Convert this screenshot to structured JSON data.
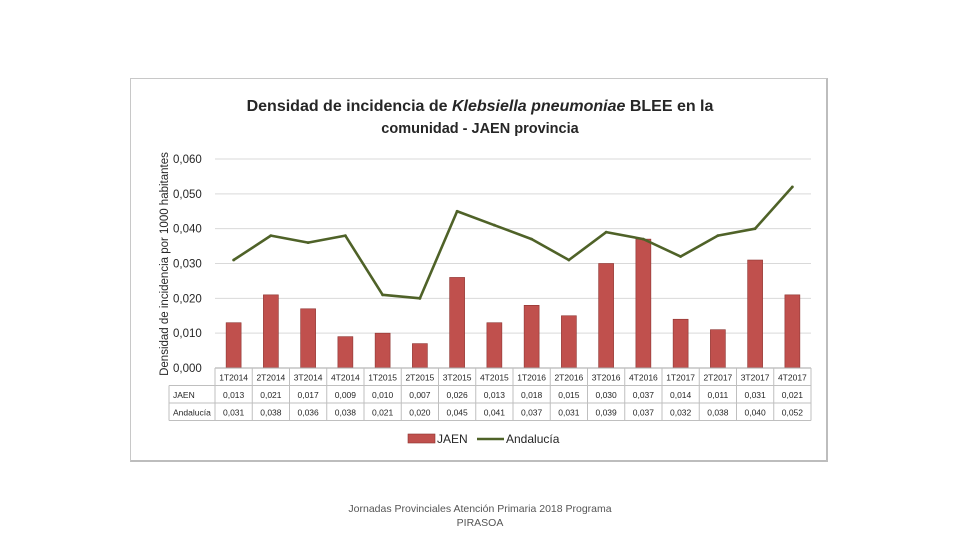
{
  "footer": {
    "line1": "Jornadas Provinciales Atención Primaria 2018 Programa",
    "line2": "PIRASOA"
  },
  "colors": {
    "bar": "#c0504d",
    "bar_stroke": "#8c3330",
    "line": "#4f6228",
    "grid": "#d9d9d9",
    "text": "#262626"
  },
  "chart_data": {
    "type": "bar",
    "title_parts": [
      {
        "text": "Densidad de incidencia de ",
        "italic": false
      },
      {
        "text": "Klebsiella pneumoniae",
        "italic": true
      },
      {
        "text": " BLEE en la",
        "italic": false
      }
    ],
    "title_line2": "comunidad - JAEN provincia",
    "ylabel": "Densidad de incidencia por 1000 habitantes",
    "ylim": [
      0,
      0.06
    ],
    "yticks": [
      0,
      0.01,
      0.02,
      0.03,
      0.04,
      0.05,
      0.06
    ],
    "ytick_labels": [
      "0,000",
      "0,010",
      "0,020",
      "0,030",
      "0,040",
      "0,050",
      "0,060"
    ],
    "categories": [
      "1T2014",
      "2T2014",
      "3T2014",
      "4T2014",
      "1T2015",
      "2T2015",
      "3T2015",
      "4T2015",
      "1T2016",
      "2T2016",
      "3T2016",
      "4T2016",
      "1T2017",
      "2T2017",
      "3T2017",
      "4T2017"
    ],
    "grid": true,
    "legend_position": "bottom",
    "series": [
      {
        "name": "JAEN",
        "type": "bar",
        "values": [
          0.013,
          0.021,
          0.017,
          0.009,
          0.01,
          0.007,
          0.026,
          0.013,
          0.018,
          0.015,
          0.03,
          0.037,
          0.014,
          0.011,
          0.031,
          0.021
        ],
        "labels": [
          "0,013",
          "0,021",
          "0,017",
          "0,009",
          "0,010",
          "0,007",
          "0,026",
          "0,013",
          "0,018",
          "0,015",
          "0,030",
          "0,037",
          "0,014",
          "0,011",
          "0,031",
          "0,021"
        ]
      },
      {
        "name": "Andalucía",
        "table_label": "Andalucía",
        "type": "line",
        "values": [
          0.031,
          0.038,
          0.036,
          0.038,
          0.021,
          0.02,
          0.045,
          0.041,
          0.037,
          0.031,
          0.039,
          0.037,
          0.032,
          0.038,
          0.04,
          0.052
        ],
        "labels": [
          "0,031",
          "0,038",
          "0,036",
          "0,038",
          "0,021",
          "0,020",
          "0,045",
          "0,041",
          "0,037",
          "0,031",
          "0,039",
          "0,037",
          "0,032",
          "0,038",
          "0,040",
          "0,052"
        ]
      }
    ]
  }
}
